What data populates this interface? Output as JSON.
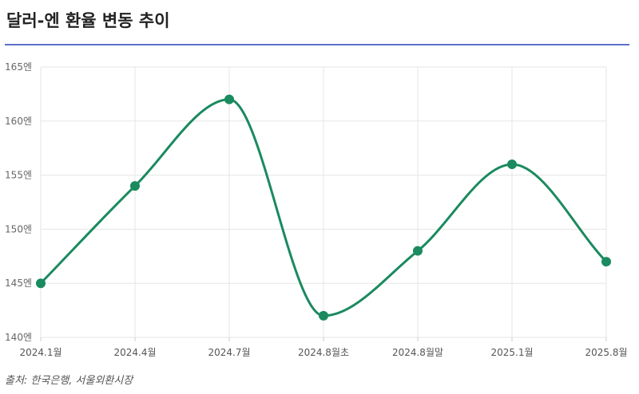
{
  "title": "달러-엔 환율 변동 추이",
  "source": "출처: 한국은행, 서울외환시장",
  "colors": {
    "line": "#1a8a5f",
    "point": "#1a8a5f",
    "grid": "#e5e5e5",
    "title_rule": "#5b6fc7"
  },
  "chart_data": {
    "type": "line",
    "title": "달러-엔 환율 변동 추이",
    "xlabel": "",
    "ylabel": "",
    "categories": [
      "2024.1월",
      "2024.4월",
      "2024.7월",
      "2024.8월초",
      "2024.8월말",
      "2025.1월",
      "2025.8월"
    ],
    "series": [
      {
        "values": [
          145,
          154,
          162,
          142,
          148,
          156,
          147
        ]
      }
    ],
    "ylim": [
      140,
      165
    ],
    "yticks": [
      140,
      145,
      150,
      155,
      160,
      165
    ],
    "ytick_labels": [
      "140엔",
      "145엔",
      "150엔",
      "155엔",
      "160엔",
      "165엔"
    ],
    "grid": true,
    "legend": "none",
    "smooth": true
  }
}
